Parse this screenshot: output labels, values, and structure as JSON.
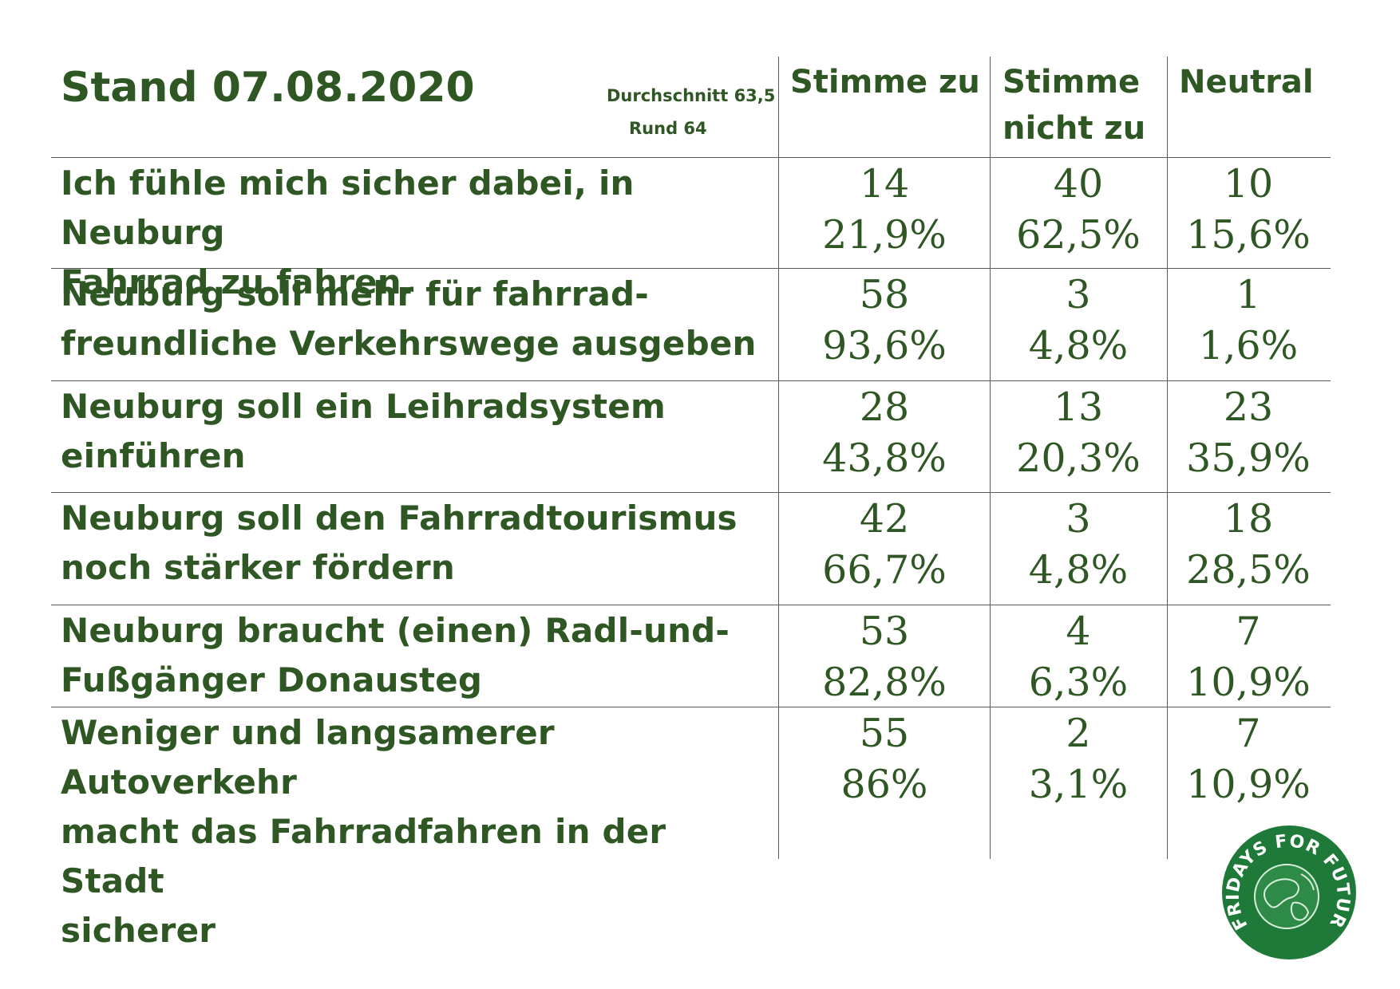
{
  "chart_data": {
    "type": "table",
    "title": "Stand 07.08.2020",
    "note_lines": [
      "Durchschnitt 63,5",
      "Rund 64"
    ],
    "columns": [
      {
        "key": "agree",
        "label_lines": [
          "Stimme zu"
        ]
      },
      {
        "key": "disagree",
        "label_lines": [
          "Stimme",
          "nicht zu"
        ]
      },
      {
        "key": "neutral",
        "label_lines": [
          "Neutral"
        ]
      }
    ],
    "rows": [
      {
        "label_lines": [
          "Ich fühle mich sicher dabei, in Neuburg",
          "Fahrrad zu fahren."
        ],
        "cells": [
          {
            "count": "14",
            "percent": "21,9%"
          },
          {
            "count": "40",
            "percent": "62,5%"
          },
          {
            "count": "10",
            "percent": "15,6%"
          }
        ]
      },
      {
        "label_lines": [
          "Neuburg soll mehr für fahrrad-",
          "freundliche Verkehrswege ausgeben"
        ],
        "cells": [
          {
            "count": "58",
            "percent": "93,6%"
          },
          {
            "count": "3",
            "percent": "4,8%"
          },
          {
            "count": "1",
            "percent": "1,6%"
          }
        ]
      },
      {
        "label_lines": [
          "Neuburg soll ein Leihradsystem",
          "einführen"
        ],
        "cells": [
          {
            "count": "28",
            "percent": "43,8%"
          },
          {
            "count": "13",
            "percent": "20,3%"
          },
          {
            "count": "23",
            "percent": "35,9%"
          }
        ]
      },
      {
        "label_lines": [
          "Neuburg soll den Fahrradtourismus",
          "noch stärker fördern"
        ],
        "cells": [
          {
            "count": "42",
            "percent": "66,7%"
          },
          {
            "count": "3",
            "percent": "4,8%"
          },
          {
            "count": "18",
            "percent": "28,5%"
          }
        ]
      },
      {
        "label_lines": [
          "Neuburg braucht (einen) Radl-und-",
          "Fußgänger Donausteg"
        ],
        "cells": [
          {
            "count": "53",
            "percent": "82,8%"
          },
          {
            "count": "4",
            "percent": "6,3%"
          },
          {
            "count": "7",
            "percent": "10,9%"
          }
        ]
      },
      {
        "label_lines": [
          "Weniger und langsamerer Autoverkehr",
          "macht das Fahrradfahren in der Stadt",
          "sicherer"
        ],
        "cells": [
          {
            "count": "55",
            "percent": "86%"
          },
          {
            "count": "2",
            "percent": "3,1%"
          },
          {
            "count": "7",
            "percent": "10,9%"
          }
        ]
      }
    ]
  },
  "logo": {
    "text": "FRIDAYS FOR FUTURE",
    "color": "#1f7a3a"
  },
  "colors": {
    "text": "#2e5724",
    "rule": "#5a5a5a",
    "background": "#ffffff"
  }
}
